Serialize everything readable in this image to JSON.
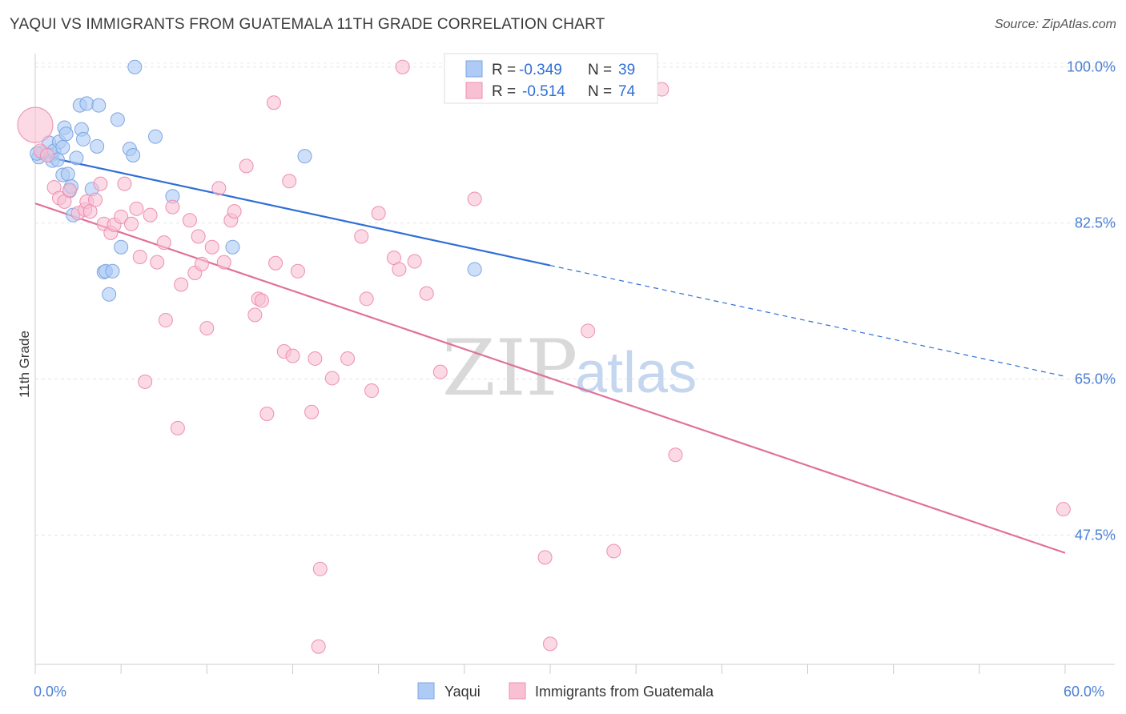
{
  "title": "YAQUI VS IMMIGRANTS FROM GUATEMALA 11TH GRADE CORRELATION CHART",
  "source": "Source: ZipAtlas.com",
  "watermark": {
    "zip": "ZIP",
    "atlas": "atlas"
  },
  "legend_top": {
    "rows": [
      {
        "r_label": "R =",
        "r_value": "-0.349",
        "n_label": "N =",
        "n_value": "39",
        "color": "#aecbf5",
        "stroke": "#7ea6e0"
      },
      {
        "r_label": "R =",
        "r_value": "-0.514",
        "n_label": "N =",
        "n_value": "74",
        "color": "#f9c0d3",
        "stroke": "#ee8fb0"
      }
    ]
  },
  "legend_bottom": [
    {
      "label": "Yaqui",
      "color": "#aecbf5",
      "stroke": "#7ea6e0"
    },
    {
      "label": "Immigrants from Guatemala",
      "color": "#f9c0d3",
      "stroke": "#ee8fb0"
    }
  ],
  "chart_data": {
    "type": "scatter",
    "title": "YAQUI VS IMMIGRANTS FROM GUATEMALA 11TH GRADE CORRELATION CHART",
    "xlabel": "",
    "ylabel": "11th Grade",
    "xlim": [
      0,
      60
    ],
    "ylim": [
      33,
      101.5
    ],
    "x_tick_labels": [
      {
        "value": 0,
        "label": "0.0%"
      },
      {
        "value": 60,
        "label": "60.0%"
      }
    ],
    "y_tick_labels": [
      {
        "value": 100,
        "label": "100.0%"
      },
      {
        "value": 82.5,
        "label": "82.5%"
      },
      {
        "value": 65,
        "label": "65.0%"
      },
      {
        "value": 47.5,
        "label": "47.5%"
      }
    ],
    "grid": true,
    "series": [
      {
        "name": "Yaqui",
        "color": "#aecbf5",
        "stroke": "#7ea6e0",
        "line_color": "#2f6fd6",
        "trend": {
          "x_start": 0,
          "y_start": 90.2,
          "x_solid_end": 30,
          "x_end": 60,
          "y_end": 65.3
        },
        "points": [
          [
            0.2,
            89.9
          ],
          [
            0.4,
            90.4
          ],
          [
            0.8,
            91.5
          ],
          [
            0.9,
            90.1
          ],
          [
            1.0,
            89.5
          ],
          [
            1.1,
            90.6
          ],
          [
            1.3,
            89.6
          ],
          [
            1.4,
            91.6
          ],
          [
            1.6,
            91.0
          ],
          [
            1.6,
            87.9
          ],
          [
            1.7,
            93.2
          ],
          [
            1.8,
            92.5
          ],
          [
            1.9,
            88.0
          ],
          [
            2.0,
            86.1
          ],
          [
            2.1,
            86.6
          ],
          [
            2.2,
            83.4
          ],
          [
            2.4,
            89.8
          ],
          [
            2.6,
            95.7
          ],
          [
            2.7,
            93.0
          ],
          [
            2.8,
            91.9
          ],
          [
            3.0,
            95.9
          ],
          [
            3.3,
            86.3
          ],
          [
            3.6,
            91.1
          ],
          [
            3.7,
            95.7
          ],
          [
            4.0,
            77.0
          ],
          [
            4.1,
            77.1
          ],
          [
            4.3,
            74.5
          ],
          [
            4.5,
            77.1
          ],
          [
            4.8,
            94.1
          ],
          [
            5.0,
            79.8
          ],
          [
            5.5,
            90.8
          ],
          [
            5.7,
            90.1
          ],
          [
            5.8,
            100.0
          ],
          [
            7.0,
            92.2
          ],
          [
            8.0,
            85.5
          ],
          [
            11.5,
            79.8
          ],
          [
            15.7,
            90.0
          ],
          [
            25.6,
            77.3
          ],
          [
            0.1,
            90.3
          ]
        ]
      },
      {
        "name": "Immigrants from Guatemala",
        "color": "#f9c0d3",
        "stroke": "#ee8fb0",
        "line_color": "#e0709a",
        "trend": {
          "x_start": 0,
          "y_start": 84.7,
          "x_solid_end": 60,
          "x_end": 60,
          "y_end": 45.5
        },
        "points": [
          [
            0.0,
            93.5
          ],
          [
            0.3,
            90.6
          ],
          [
            0.7,
            90.1
          ],
          [
            1.1,
            86.5
          ],
          [
            1.4,
            85.3
          ],
          [
            1.7,
            84.9
          ],
          [
            2.0,
            86.2
          ],
          [
            2.5,
            83.6
          ],
          [
            2.9,
            84.0
          ],
          [
            3.0,
            84.9
          ],
          [
            3.2,
            83.8
          ],
          [
            3.5,
            85.1
          ],
          [
            3.8,
            86.9
          ],
          [
            4.0,
            82.4
          ],
          [
            4.4,
            81.4
          ],
          [
            4.6,
            82.3
          ],
          [
            5.0,
            83.2
          ],
          [
            5.2,
            86.9
          ],
          [
            5.6,
            82.4
          ],
          [
            5.9,
            84.1
          ],
          [
            6.1,
            78.7
          ],
          [
            6.4,
            64.7
          ],
          [
            6.7,
            83.4
          ],
          [
            7.1,
            78.1
          ],
          [
            7.5,
            80.3
          ],
          [
            7.6,
            71.6
          ],
          [
            8.0,
            84.3
          ],
          [
            8.3,
            59.5
          ],
          [
            8.5,
            75.6
          ],
          [
            9.0,
            82.8
          ],
          [
            9.3,
            76.9
          ],
          [
            9.5,
            81.0
          ],
          [
            9.7,
            77.9
          ],
          [
            10.0,
            70.7
          ],
          [
            10.3,
            79.8
          ],
          [
            10.7,
            86.4
          ],
          [
            11.0,
            78.1
          ],
          [
            11.4,
            82.8
          ],
          [
            11.6,
            83.8
          ],
          [
            12.3,
            88.9
          ],
          [
            12.8,
            72.2
          ],
          [
            13.0,
            74.0
          ],
          [
            13.2,
            73.8
          ],
          [
            13.5,
            61.1
          ],
          [
            13.9,
            96.0
          ],
          [
            14.0,
            78.0
          ],
          [
            14.5,
            68.1
          ],
          [
            14.8,
            87.2
          ],
          [
            15.0,
            67.6
          ],
          [
            15.3,
            77.1
          ],
          [
            16.1,
            61.3
          ],
          [
            16.3,
            67.3
          ],
          [
            16.5,
            35.0
          ],
          [
            16.6,
            43.7
          ],
          [
            17.3,
            65.1
          ],
          [
            18.2,
            67.3
          ],
          [
            19.0,
            81.0
          ],
          [
            19.3,
            74.0
          ],
          [
            19.6,
            63.7
          ],
          [
            20.0,
            83.6
          ],
          [
            20.9,
            78.6
          ],
          [
            21.2,
            77.3
          ],
          [
            21.4,
            100.0
          ],
          [
            22.1,
            78.2
          ],
          [
            22.8,
            74.6
          ],
          [
            23.6,
            65.8
          ],
          [
            25.6,
            85.2
          ],
          [
            29.7,
            45.0
          ],
          [
            30.0,
            35.3
          ],
          [
            32.2,
            70.4
          ],
          [
            33.7,
            45.7
          ],
          [
            36.5,
            97.5
          ],
          [
            37.3,
            56.5
          ],
          [
            59.9,
            50.4
          ]
        ]
      }
    ]
  }
}
